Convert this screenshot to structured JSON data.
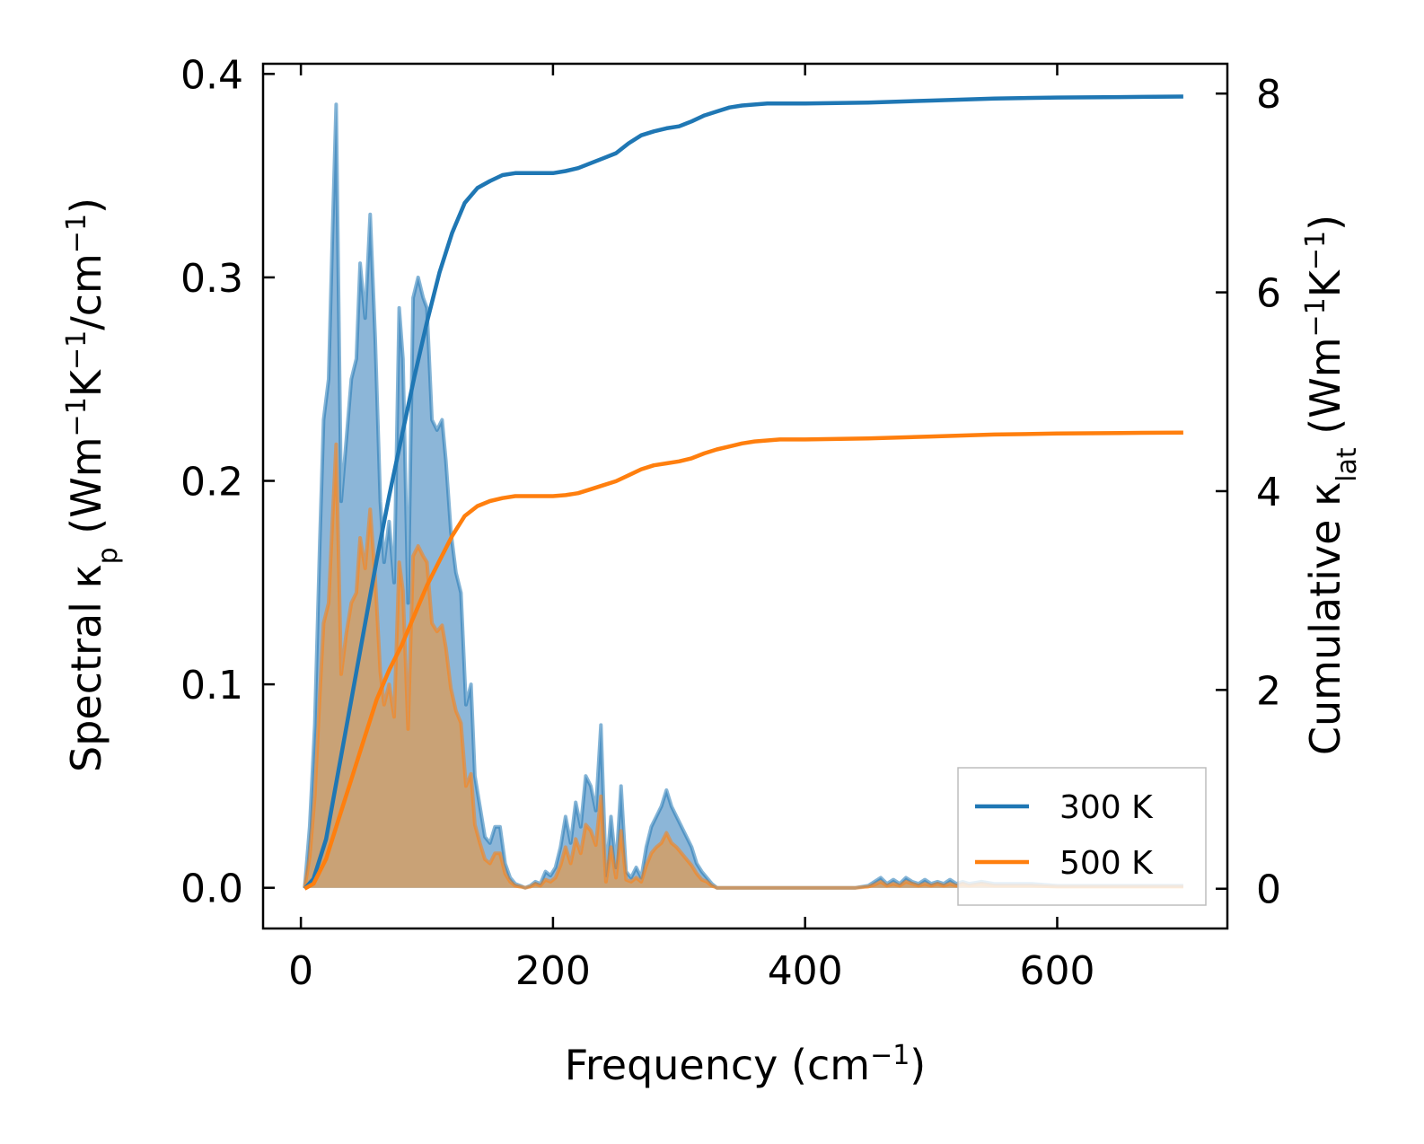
{
  "chart_data": {
    "type": "line",
    "xlabel": "Frequency (cm",
    "xlabel_sup": "−1",
    "xlabel_end": ")",
    "ylabel_left": {
      "pre": "Spectral κ",
      "sub": "p",
      "mid1": " (Wm",
      "sup1": "−1",
      "mid2": "K",
      "sup2": "−1",
      "mid3": "/cm",
      "sup3": "−1",
      "end": ")"
    },
    "ylabel_right": {
      "pre": "Cumulative κ",
      "sub": "lat",
      "mid1": " (Wm",
      "sup1": "−1",
      "mid2": "K",
      "sup2": "−1",
      "end": ")"
    },
    "xlim": [
      -30,
      735
    ],
    "ylim_left": [
      -0.02,
      0.405
    ],
    "ylim_right": [
      -0.4,
      8.3
    ],
    "x_ticks": [
      0,
      200,
      400,
      600
    ],
    "y_left_ticks": [
      0.0,
      0.1,
      0.2,
      0.3,
      0.4
    ],
    "y_left_tick_labels": [
      "0.0",
      "0.1",
      "0.2",
      "0.3",
      "0.4"
    ],
    "y_right_ticks": [
      0,
      2,
      4,
      6,
      8
    ],
    "legend_position": "lower-right",
    "colors": {
      "s300": "#1f77b4",
      "s500": "#ff7f0e"
    },
    "series": [
      {
        "name": "300 K",
        "spectral": {
          "x": [
            3,
            7,
            11,
            15,
            18,
            22,
            25,
            28,
            32,
            36,
            40,
            44,
            47,
            51,
            55,
            59,
            63,
            66,
            70,
            74,
            78,
            81,
            85,
            89,
            93,
            97,
            100,
            104,
            108,
            112,
            115,
            119,
            123,
            127,
            131,
            135,
            138,
            142,
            146,
            150,
            154,
            158,
            162,
            166,
            170,
            174,
            178,
            182,
            186,
            190,
            194,
            198,
            202,
            206,
            210,
            214,
            218,
            222,
            226,
            230,
            234,
            238,
            242,
            246,
            250,
            254,
            258,
            262,
            266,
            270,
            274,
            278,
            282,
            286,
            290,
            294,
            298,
            302,
            306,
            310,
            314,
            318,
            322,
            326,
            330,
            334,
            338,
            342,
            346,
            350,
            354,
            358,
            362,
            366,
            370,
            374,
            378,
            382,
            386,
            390,
            400,
            420,
            440,
            450,
            455,
            460,
            465,
            470,
            475,
            480,
            485,
            490,
            495,
            500,
            505,
            510,
            515,
            520,
            525,
            530,
            540,
            550,
            560,
            570,
            580,
            600,
            620,
            640,
            660,
            680,
            700
          ],
          "y": [
            0.0,
            0.03,
            0.08,
            0.17,
            0.23,
            0.25,
            0.32,
            0.385,
            0.19,
            0.22,
            0.25,
            0.26,
            0.307,
            0.28,
            0.331,
            0.27,
            0.19,
            0.16,
            0.18,
            0.15,
            0.285,
            0.26,
            0.14,
            0.29,
            0.3,
            0.29,
            0.285,
            0.23,
            0.225,
            0.23,
            0.21,
            0.175,
            0.155,
            0.145,
            0.09,
            0.1,
            0.055,
            0.04,
            0.025,
            0.022,
            0.03,
            0.03,
            0.012,
            0.005,
            0.002,
            0.001,
            0.0,
            0.001,
            0.003,
            0.002,
            0.008,
            0.006,
            0.01,
            0.02,
            0.035,
            0.022,
            0.042,
            0.03,
            0.055,
            0.05,
            0.038,
            0.08,
            0.006,
            0.035,
            0.01,
            0.05,
            0.008,
            0.005,
            0.01,
            0.005,
            0.02,
            0.03,
            0.035,
            0.04,
            0.048,
            0.04,
            0.035,
            0.03,
            0.025,
            0.02,
            0.012,
            0.008,
            0.005,
            0.002,
            0.0,
            0.0,
            0.0,
            0.0,
            0.0,
            0.0,
            0.0,
            0.0,
            0.0,
            0.0,
            0.0,
            0.0,
            0.0,
            0.0,
            0.0,
            0.0,
            0.0,
            0.0,
            0.0,
            0.001,
            0.003,
            0.005,
            0.002,
            0.004,
            0.002,
            0.005,
            0.003,
            0.002,
            0.004,
            0.002,
            0.003,
            0.002,
            0.004,
            0.002,
            0.003,
            0.002,
            0.003,
            0.002,
            0.002,
            0.002,
            0.002,
            0.001,
            0.001,
            0.001,
            0.001,
            0.001,
            0.001
          ]
        },
        "cumulative": {
          "x": [
            3,
            10,
            20,
            30,
            40,
            50,
            60,
            70,
            80,
            90,
            100,
            110,
            120,
            130,
            140,
            150,
            160,
            170,
            180,
            190,
            200,
            210,
            220,
            230,
            240,
            250,
            260,
            270,
            280,
            290,
            300,
            310,
            320,
            330,
            340,
            350,
            360,
            370,
            380,
            400,
            450,
            500,
            550,
            600,
            650,
            700
          ],
          "y": [
            0.0,
            0.1,
            0.5,
            1.2,
            1.9,
            2.6,
            3.3,
            3.95,
            4.55,
            5.15,
            5.7,
            6.2,
            6.6,
            6.9,
            7.05,
            7.12,
            7.18,
            7.2,
            7.2,
            7.2,
            7.2,
            7.22,
            7.25,
            7.3,
            7.35,
            7.4,
            7.5,
            7.58,
            7.62,
            7.65,
            7.67,
            7.72,
            7.78,
            7.82,
            7.86,
            7.88,
            7.89,
            7.9,
            7.9,
            7.9,
            7.91,
            7.93,
            7.95,
            7.96,
            7.965,
            7.97
          ]
        }
      },
      {
        "name": "500 K",
        "spectral": {
          "x": [
            3,
            7,
            11,
            15,
            18,
            22,
            25,
            28,
            32,
            36,
            40,
            44,
            47,
            51,
            55,
            59,
            63,
            66,
            70,
            74,
            78,
            81,
            85,
            89,
            93,
            97,
            100,
            104,
            108,
            112,
            115,
            119,
            123,
            127,
            131,
            135,
            138,
            142,
            146,
            150,
            154,
            158,
            162,
            166,
            170,
            174,
            178,
            182,
            186,
            190,
            194,
            198,
            202,
            206,
            210,
            214,
            218,
            222,
            226,
            230,
            234,
            238,
            242,
            246,
            250,
            254,
            258,
            262,
            266,
            270,
            274,
            278,
            282,
            286,
            290,
            294,
            298,
            302,
            306,
            310,
            314,
            318,
            322,
            326,
            330,
            334,
            338,
            342,
            346,
            350,
            354,
            358,
            362,
            366,
            370,
            374,
            378,
            382,
            386,
            390,
            400,
            420,
            440,
            450,
            455,
            460,
            465,
            470,
            475,
            480,
            485,
            490,
            495,
            500,
            505,
            510,
            515,
            520,
            525,
            530,
            540,
            550,
            560,
            570,
            580,
            600,
            620,
            640,
            660,
            680,
            700
          ],
          "y": [
            0.0,
            0.015,
            0.045,
            0.095,
            0.13,
            0.14,
            0.18,
            0.218,
            0.105,
            0.125,
            0.14,
            0.145,
            0.172,
            0.157,
            0.186,
            0.152,
            0.106,
            0.09,
            0.1,
            0.084,
            0.16,
            0.146,
            0.078,
            0.163,
            0.168,
            0.163,
            0.16,
            0.13,
            0.126,
            0.129,
            0.118,
            0.098,
            0.087,
            0.081,
            0.05,
            0.056,
            0.031,
            0.022,
            0.014,
            0.012,
            0.017,
            0.017,
            0.007,
            0.003,
            0.001,
            0.0005,
            0.0,
            0.0005,
            0.002,
            0.001,
            0.004,
            0.003,
            0.005,
            0.011,
            0.02,
            0.012,
            0.024,
            0.017,
            0.031,
            0.028,
            0.021,
            0.045,
            0.003,
            0.02,
            0.005,
            0.028,
            0.004,
            0.003,
            0.005,
            0.003,
            0.011,
            0.017,
            0.02,
            0.022,
            0.027,
            0.022,
            0.02,
            0.017,
            0.014,
            0.011,
            0.007,
            0.004,
            0.003,
            0.001,
            0.0,
            0.0,
            0.0,
            0.0,
            0.0,
            0.0,
            0.0,
            0.0,
            0.0,
            0.0,
            0.0,
            0.0,
            0.0,
            0.0,
            0.0,
            0.0,
            0.0,
            0.0,
            0.0,
            0.0005,
            0.0015,
            0.003,
            0.001,
            0.002,
            0.001,
            0.003,
            0.002,
            0.001,
            0.002,
            0.001,
            0.002,
            0.001,
            0.002,
            0.001,
            0.002,
            0.001,
            0.002,
            0.001,
            0.001,
            0.001,
            0.001,
            0.0005,
            0.0005,
            0.0005,
            0.0005,
            0.0005,
            0.0005
          ]
        },
        "cumulative": {
          "x": [
            3,
            10,
            20,
            30,
            40,
            50,
            60,
            70,
            80,
            90,
            100,
            110,
            120,
            130,
            140,
            150,
            160,
            170,
            180,
            190,
            200,
            210,
            220,
            230,
            240,
            250,
            260,
            270,
            280,
            290,
            300,
            310,
            320,
            330,
            340,
            350,
            360,
            370,
            380,
            400,
            450,
            500,
            550,
            600,
            650,
            700
          ],
          "y": [
            0.0,
            0.05,
            0.3,
            0.7,
            1.1,
            1.5,
            1.9,
            2.2,
            2.45,
            2.75,
            3.05,
            3.3,
            3.55,
            3.75,
            3.85,
            3.9,
            3.93,
            3.95,
            3.95,
            3.95,
            3.95,
            3.96,
            3.98,
            4.02,
            4.06,
            4.1,
            4.16,
            4.22,
            4.26,
            4.28,
            4.3,
            4.33,
            4.38,
            4.42,
            4.45,
            4.48,
            4.5,
            4.51,
            4.52,
            4.52,
            4.53,
            4.55,
            4.57,
            4.58,
            4.585,
            4.59
          ]
        }
      }
    ]
  }
}
